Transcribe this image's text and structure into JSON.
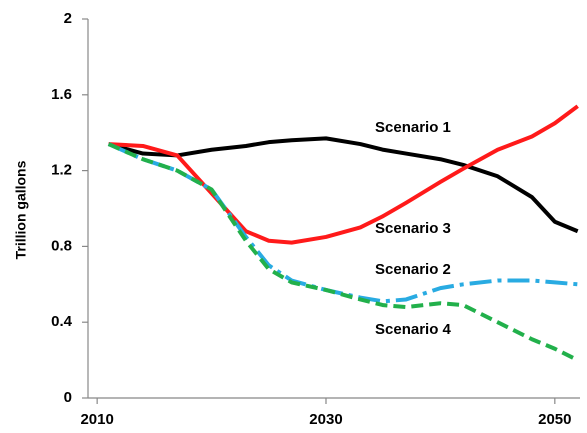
{
  "chart_data": {
    "type": "line",
    "y_label": "Trillion gallons",
    "x": [
      2011,
      2014,
      2017,
      2020,
      2023,
      2025,
      2027,
      2030,
      2033,
      2035,
      2037,
      2040,
      2042,
      2045,
      2048,
      2050,
      2052
    ],
    "series": [
      {
        "name": "Scenario 1",
        "color": "#000000",
        "linestyle": "solid",
        "values": [
          1.34,
          1.29,
          1.28,
          1.31,
          1.33,
          1.35,
          1.36,
          1.37,
          1.34,
          1.31,
          1.29,
          1.26,
          1.23,
          1.17,
          1.06,
          0.93,
          0.88
        ]
      },
      {
        "name": "Scenario 3",
        "color": "#ff1a1a",
        "linestyle": "solid",
        "values": [
          1.34,
          1.33,
          1.28,
          1.08,
          0.88,
          0.83,
          0.82,
          0.85,
          0.9,
          0.96,
          1.03,
          1.14,
          1.21,
          1.31,
          1.38,
          1.45,
          1.54
        ]
      },
      {
        "name": "Scenario 2",
        "color": "#29abe2",
        "linestyle": "dashdot",
        "values": [
          1.34,
          1.26,
          1.2,
          1.1,
          0.85,
          0.7,
          0.62,
          0.57,
          0.53,
          0.51,
          0.52,
          0.58,
          0.6,
          0.62,
          0.62,
          0.61,
          0.6
        ]
      },
      {
        "name": "Scenario 4",
        "color": "#22b04b",
        "linestyle": "dashed",
        "values": [
          1.34,
          1.26,
          1.2,
          1.1,
          0.83,
          0.68,
          0.61,
          0.57,
          0.52,
          0.49,
          0.48,
          0.5,
          0.49,
          0.4,
          0.31,
          0.26,
          0.2
        ]
      }
    ],
    "xlim": [
      2009.2,
      2052.2
    ],
    "xticks": [
      2010,
      2030,
      2050
    ],
    "ylim": [
      0,
      2
    ],
    "yticks": [
      0,
      0.4,
      0.8,
      1.2,
      1.6,
      2
    ],
    "grid": false
  }
}
